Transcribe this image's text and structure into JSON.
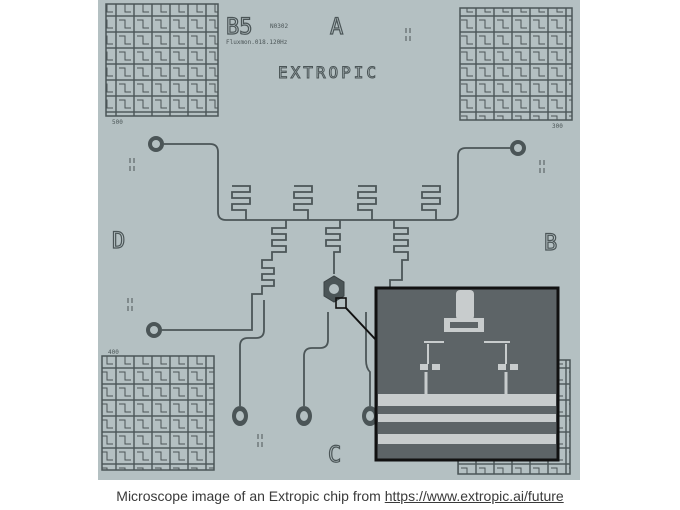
{
  "image": {
    "chip_label": "B5",
    "chip_sublabel": "Fluxmon.018.120Hz",
    "chip_code": "N0302",
    "brand": "EXTROPIC",
    "quadrant_labels": {
      "top": "A",
      "right": "B",
      "bottom": "C",
      "left": "D"
    },
    "grid_labels": {
      "top_left": "500",
      "top_right": "300",
      "bottom_left": "400"
    },
    "colors": {
      "substrate": "#b4c0c2",
      "trace": "#4b5557",
      "inset_background": "#5d6467",
      "inset_border": "#111111"
    }
  },
  "caption": {
    "text": "Microscope image of an Extropic chip from ",
    "link_text": "https://www.extropic.ai/future"
  }
}
